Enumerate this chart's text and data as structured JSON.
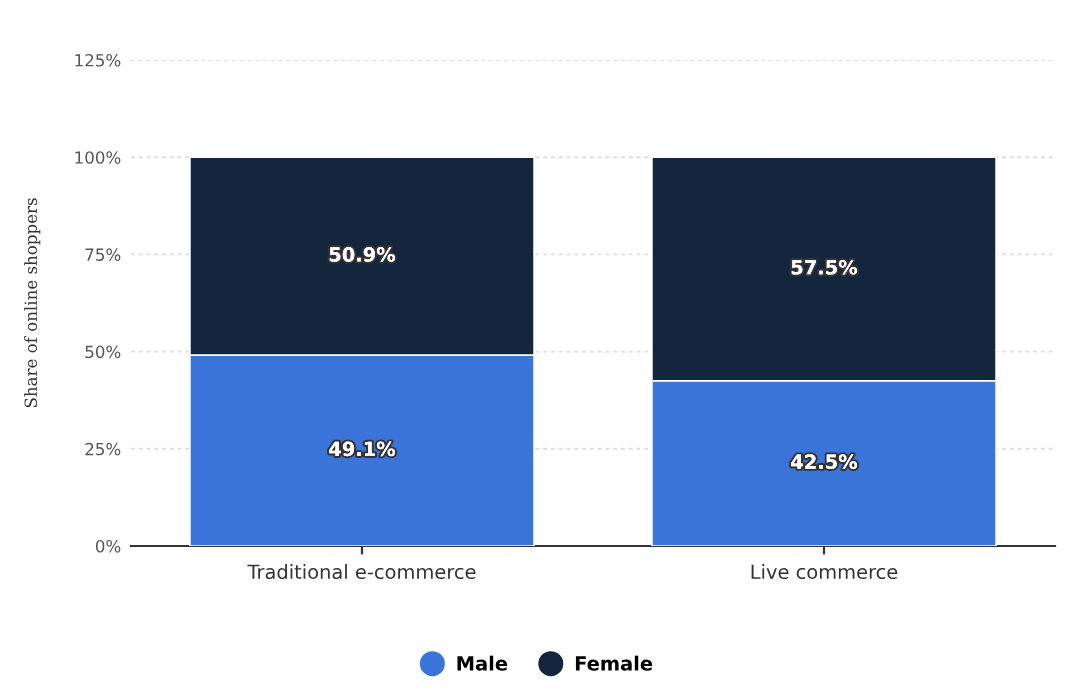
{
  "chart_data": {
    "type": "bar",
    "stacked": true,
    "ylabel": "Share of online shoppers",
    "categories": [
      "Traditional e-commerce",
      "Live commerce"
    ],
    "series": [
      {
        "name": "Male",
        "color": "#3b74d9",
        "values": [
          49.1,
          42.5
        ],
        "value_labels": [
          "49.1%",
          "42.5%"
        ]
      },
      {
        "name": "Female",
        "color": "#13263e",
        "values": [
          50.9,
          57.5
        ],
        "value_labels": [
          "50.9%",
          "57.5%"
        ]
      }
    ],
    "ylim": [
      0,
      125
    ],
    "yticks": [
      {
        "value": 0,
        "label": "0%"
      },
      {
        "value": 25,
        "label": "25%"
      },
      {
        "value": 50,
        "label": "50%"
      },
      {
        "value": 75,
        "label": "75%"
      },
      {
        "value": 100,
        "label": "100%"
      },
      {
        "value": 125,
        "label": "125%"
      }
    ],
    "grid": "y",
    "legend": "bottom",
    "marker": "circle"
  }
}
